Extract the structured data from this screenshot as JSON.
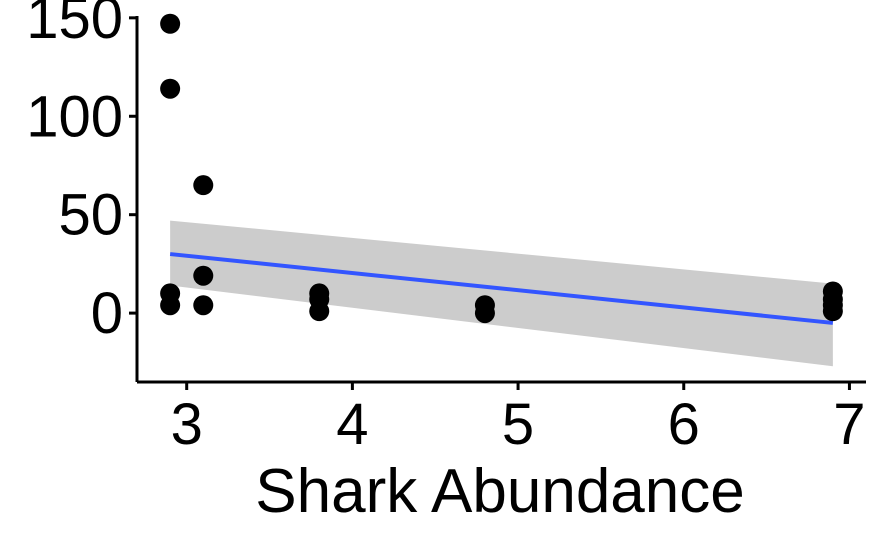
{
  "chart_data": {
    "type": "scatter",
    "title": "",
    "xlabel": "Shark Abundance",
    "ylabel": "",
    "xlim": [
      2.7,
      7.1
    ],
    "ylim": [
      -35,
      155
    ],
    "x_ticks": [
      3,
      4,
      5,
      6,
      7
    ],
    "y_ticks": [
      0,
      50,
      100,
      150
    ],
    "grid": false,
    "legend": "none",
    "points": [
      {
        "x": 2.9,
        "y": 147
      },
      {
        "x": 2.9,
        "y": 114
      },
      {
        "x": 2.9,
        "y": 10
      },
      {
        "x": 2.9,
        "y": 4
      },
      {
        "x": 3.1,
        "y": 65
      },
      {
        "x": 3.1,
        "y": 19
      },
      {
        "x": 3.1,
        "y": 4
      },
      {
        "x": 3.8,
        "y": 10
      },
      {
        "x": 3.8,
        "y": 7
      },
      {
        "x": 3.8,
        "y": 1
      },
      {
        "x": 4.8,
        "y": 4
      },
      {
        "x": 4.8,
        "y": 0
      },
      {
        "x": 6.9,
        "y": 11
      },
      {
        "x": 6.9,
        "y": 7
      },
      {
        "x": 6.9,
        "y": 4
      },
      {
        "x": 6.9,
        "y": 1
      }
    ],
    "fit": {
      "type": "linear",
      "x": [
        2.9,
        6.9
      ],
      "y": [
        30,
        -5
      ],
      "ci_lower": [
        14,
        -27
      ],
      "ci_upper": [
        47,
        15
      ]
    },
    "colors": {
      "points": "#000000",
      "fit_line": "#3355ff",
      "ci_band": "#cccccc",
      "axis": "#000000"
    }
  }
}
